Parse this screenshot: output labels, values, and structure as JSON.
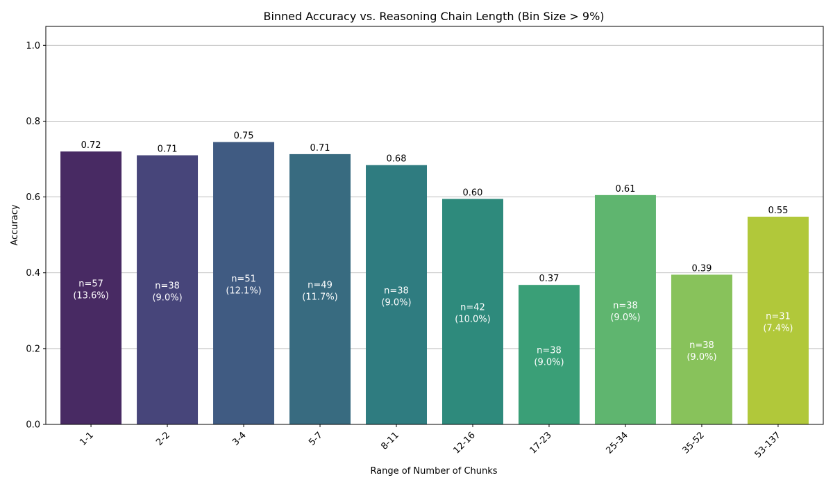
{
  "chart_data": {
    "type": "bar",
    "title": "Binned Accuracy vs. Reasoning Chain Length (Bin Size > 9%)",
    "xlabel": "Range of Number of Chunks",
    "ylabel": "Accuracy",
    "ylim": [
      0,
      1.05
    ],
    "yticks": [
      0.0,
      0.2,
      0.4,
      0.6,
      0.8,
      1.0
    ],
    "ytick_labels": [
      "0.0",
      "0.2",
      "0.4",
      "0.6",
      "0.8",
      "1.0"
    ],
    "grid": "y",
    "categories": [
      "1-1",
      "2-2",
      "3-4",
      "5-7",
      "8-11",
      "12-16",
      "17-23",
      "25-34",
      "35-52",
      "53-137"
    ],
    "values": [
      0.72,
      0.71,
      0.745,
      0.713,
      0.684,
      0.595,
      0.368,
      0.605,
      0.395,
      0.548
    ],
    "value_labels": [
      "0.72",
      "0.71",
      "0.75",
      "0.71",
      "0.68",
      "0.60",
      "0.37",
      "0.61",
      "0.39",
      "0.55"
    ],
    "count_labels": [
      "n=57",
      "n=38",
      "n=51",
      "n=49",
      "n=38",
      "n=42",
      "n=38",
      "n=38",
      "n=38",
      "n=31"
    ],
    "percent_labels": [
      "(13.6%)",
      "(9.0%)",
      "(12.1%)",
      "(11.7%)",
      "(9.0%)",
      "(10.0%)",
      "(9.0%)",
      "(9.0%)",
      "(9.0%)",
      "(7.4%)"
    ],
    "colors": [
      "#482a63",
      "#47457a",
      "#405b82",
      "#386b80",
      "#2f7c80",
      "#2e8a7c",
      "#3a9f77",
      "#5fb56f",
      "#88c25b",
      "#b1c83a"
    ]
  }
}
